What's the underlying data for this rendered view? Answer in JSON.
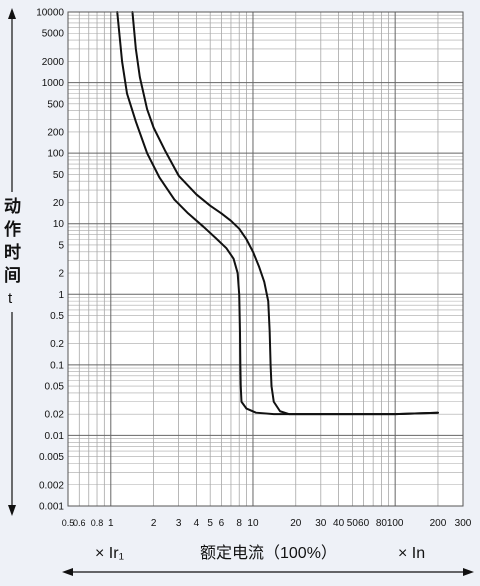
{
  "chart_data": {
    "type": "line",
    "title": "",
    "ylabel_chars": [
      "动",
      "作",
      "时",
      "间"
    ],
    "ylabel_symbol": "t",
    "xlabel_left": "× Ir₁",
    "xlabel_center": "额定电流（100%）",
    "xlabel_right": "× In",
    "x_scale": "log",
    "y_scale": "log",
    "xlim": [
      0.5,
      300
    ],
    "ylim": [
      0.001,
      10000
    ],
    "grid": true,
    "legend": "none",
    "x_ticks": [
      {
        "v": 0.5,
        "label": "0.5"
      },
      {
        "v": 0.6,
        "label": "0.6"
      },
      {
        "v": 0.8,
        "label": "0.8"
      },
      {
        "v": 1,
        "label": "1"
      },
      {
        "v": 2,
        "label": "2"
      },
      {
        "v": 3,
        "label": "3"
      },
      {
        "v": 4,
        "label": "4"
      },
      {
        "v": 5,
        "label": "5"
      },
      {
        "v": 6,
        "label": "6"
      },
      {
        "v": 8,
        "label": "8"
      },
      {
        "v": 10,
        "label": "10"
      },
      {
        "v": 20,
        "label": "20"
      },
      {
        "v": 30,
        "label": "30"
      },
      {
        "v": 40,
        "label": "40"
      },
      {
        "v": 50,
        "label": "50"
      },
      {
        "v": 60,
        "label": "60"
      },
      {
        "v": 80,
        "label": "80"
      },
      {
        "v": 100,
        "label": "100"
      },
      {
        "v": 200,
        "label": "200"
      },
      {
        "v": 300,
        "label": "300"
      }
    ],
    "y_ticks": [
      {
        "v": 10000,
        "label": "10000"
      },
      {
        "v": 5000,
        "label": "5000"
      },
      {
        "v": 2000,
        "label": "2000"
      },
      {
        "v": 1000,
        "label": "1000"
      },
      {
        "v": 500,
        "label": "500"
      },
      {
        "v": 200,
        "label": "200"
      },
      {
        "v": 100,
        "label": "100"
      },
      {
        "v": 50,
        "label": "50"
      },
      {
        "v": 20,
        "label": "20"
      },
      {
        "v": 10,
        "label": "10"
      },
      {
        "v": 5,
        "label": "5"
      },
      {
        "v": 2,
        "label": "2"
      },
      {
        "v": 1,
        "label": "1"
      },
      {
        "v": 0.5,
        "label": "0.5"
      },
      {
        "v": 0.2,
        "label": "0.2"
      },
      {
        "v": 0.1,
        "label": "0.1"
      },
      {
        "v": 0.05,
        "label": "0.05"
      },
      {
        "v": 0.02,
        "label": "0.02"
      },
      {
        "v": 0.01,
        "label": "0.01"
      },
      {
        "v": 0.005,
        "label": "0.005"
      },
      {
        "v": 0.002,
        "label": "0.002"
      },
      {
        "v": 0.001,
        "label": "0.001"
      }
    ],
    "series": [
      {
        "points": [
          [
            1.11,
            10000
          ],
          [
            1.2,
            2000
          ],
          [
            1.3,
            700
          ],
          [
            1.5,
            280
          ],
          [
            1.8,
            100
          ],
          [
            2.2,
            45
          ],
          [
            2.8,
            22
          ],
          [
            3.5,
            14
          ],
          [
            4.5,
            9
          ],
          [
            5.5,
            6.2
          ],
          [
            6.5,
            4.5
          ],
          [
            7.3,
            3.2
          ],
          [
            7.8,
            2.0
          ],
          [
            8.0,
            1.0
          ],
          [
            8.1,
            0.3
          ],
          [
            8.15,
            0.1
          ],
          [
            8.2,
            0.05
          ],
          [
            8.3,
            0.03
          ],
          [
            9.0,
            0.024
          ],
          [
            10.5,
            0.021
          ],
          [
            14,
            0.02
          ],
          [
            30,
            0.02
          ],
          [
            100,
            0.02
          ],
          [
            200,
            0.021
          ]
        ]
      },
      {
        "points": [
          [
            1.42,
            10000
          ],
          [
            1.5,
            3000
          ],
          [
            1.6,
            1200
          ],
          [
            1.8,
            420
          ],
          [
            2.0,
            230
          ],
          [
            2.4,
            110
          ],
          [
            3.0,
            48
          ],
          [
            4.0,
            26
          ],
          [
            5.0,
            18
          ],
          [
            6.0,
            14
          ],
          [
            7.0,
            11
          ],
          [
            8.0,
            8.5
          ],
          [
            9.0,
            6
          ],
          [
            10.0,
            4
          ],
          [
            11.0,
            2.5
          ],
          [
            12.0,
            1.5
          ],
          [
            12.8,
            0.8
          ],
          [
            13.1,
            0.3
          ],
          [
            13.3,
            0.1
          ],
          [
            13.5,
            0.05
          ],
          [
            14.0,
            0.03
          ],
          [
            15.5,
            0.022
          ],
          [
            18.0,
            0.02
          ],
          [
            30,
            0.02
          ],
          [
            100,
            0.02
          ],
          [
            200,
            0.021
          ]
        ]
      }
    ]
  }
}
